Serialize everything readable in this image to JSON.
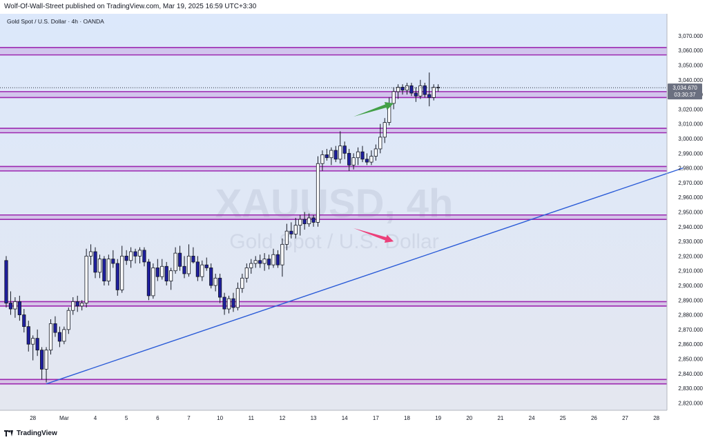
{
  "header": {
    "published": "Wolf-Of-Wall-Street published on TradingView.com, Mar 19, 2025 16:59 UTC+3:30"
  },
  "footer": {
    "brand": "TradingView"
  },
  "colors": {
    "bull": "#ffffff",
    "bear": "#1f1f9e",
    "band": "#9c27b0",
    "trend": "#2a5bd7",
    "bg_top": "#dce8fb",
    "bg_bottom": "#e4e7f0"
  },
  "chart_data": {
    "type": "candlestick",
    "title": "Gold Spot / U.S. Dollar · 4h · OANDA",
    "watermark": {
      "symbol": "XAUUSD, 4h",
      "name": "Gold Spot / U.S. Dollar"
    },
    "ylim": [
      2815,
      3085
    ],
    "y_ticks": [
      "3,070.000",
      "3,060.000",
      "3,050.000",
      "3,040.000",
      "3,030.000",
      "3,020.000",
      "3,010.000",
      "3,000.000",
      "2,990.000",
      "2,980.000",
      "2,970.000",
      "2,960.000",
      "2,950.000",
      "2,940.000",
      "2,930.000",
      "2,920.000",
      "2,910.000",
      "2,900.000",
      "2,890.000",
      "2,880.000",
      "2,870.000",
      "2,860.000",
      "2,850.000",
      "2,840.000",
      "2,830.000",
      "2,820.000"
    ],
    "x_labels": [
      {
        "i": 6,
        "label": "28"
      },
      {
        "i": 13,
        "label": "Mar"
      },
      {
        "i": 20,
        "label": "4"
      },
      {
        "i": 27,
        "label": "5"
      },
      {
        "i": 34,
        "label": "6"
      },
      {
        "i": 41,
        "label": "7"
      },
      {
        "i": 48,
        "label": "10"
      },
      {
        "i": 55,
        "label": "11"
      },
      {
        "i": 62,
        "label": "12"
      },
      {
        "i": 69,
        "label": "13"
      },
      {
        "i": 76,
        "label": "14"
      },
      {
        "i": 83,
        "label": "17"
      },
      {
        "i": 90,
        "label": "18"
      },
      {
        "i": 97,
        "label": "19"
      },
      {
        "i": 104,
        "label": "20"
      },
      {
        "i": 111,
        "label": "21"
      },
      {
        "i": 118,
        "label": "24"
      },
      {
        "i": 125,
        "label": "25"
      },
      {
        "i": 132,
        "label": "26"
      },
      {
        "i": 139,
        "label": "27"
      },
      {
        "i": 146,
        "label": "28"
      }
    ],
    "candles": [
      [
        2917,
        2920,
        2885,
        2888
      ],
      [
        2888,
        2896,
        2880,
        2884
      ],
      [
        2884,
        2892,
        2878,
        2889
      ],
      [
        2889,
        2893,
        2876,
        2880
      ],
      [
        2880,
        2884,
        2868,
        2872
      ],
      [
        2872,
        2876,
        2855,
        2860
      ],
      [
        2860,
        2866,
        2849,
        2864
      ],
      [
        2864,
        2870,
        2852,
        2856
      ],
      [
        2856,
        2858,
        2836,
        2843
      ],
      [
        2843,
        2858,
        2834,
        2856
      ],
      [
        2856,
        2877,
        2853,
        2874
      ],
      [
        2874,
        2879,
        2865,
        2868
      ],
      [
        2868,
        2872,
        2858,
        2862
      ],
      [
        2862,
        2872,
        2860,
        2870
      ],
      [
        2870,
        2885,
        2867,
        2883
      ],
      [
        2883,
        2892,
        2880,
        2889
      ],
      [
        2889,
        2893,
        2882,
        2886
      ],
      [
        2886,
        2890,
        2883,
        2888
      ],
      [
        2888,
        2925,
        2885,
        2920
      ],
      [
        2920,
        2928,
        2914,
        2923
      ],
      [
        2923,
        2926,
        2905,
        2909
      ],
      [
        2909,
        2921,
        2905,
        2918
      ],
      [
        2918,
        2920,
        2900,
        2903
      ],
      [
        2903,
        2921,
        2900,
        2918
      ],
      [
        2918,
        2924,
        2912,
        2915
      ],
      [
        2915,
        2918,
        2893,
        2897
      ],
      [
        2897,
        2927,
        2895,
        2920
      ],
      [
        2920,
        2924,
        2914,
        2917
      ],
      [
        2917,
        2926,
        2912,
        2923
      ],
      [
        2923,
        2925,
        2915,
        2920
      ],
      [
        2920,
        2926,
        2915,
        2924
      ],
      [
        2924,
        2926,
        2913,
        2916
      ],
      [
        2916,
        2918,
        2890,
        2893
      ],
      [
        2893,
        2915,
        2891,
        2912
      ],
      [
        2912,
        2918,
        2903,
        2906
      ],
      [
        2906,
        2918,
        2904,
        2913
      ],
      [
        2913,
        2916,
        2900,
        2903
      ],
      [
        2903,
        2912,
        2897,
        2910
      ],
      [
        2910,
        2926,
        2908,
        2922
      ],
      [
        2922,
        2927,
        2910,
        2913
      ],
      [
        2913,
        2920,
        2905,
        2908
      ],
      [
        2908,
        2928,
        2906,
        2920
      ],
      [
        2920,
        2926,
        2915,
        2916
      ],
      [
        2916,
        2920,
        2903,
        2906
      ],
      [
        2906,
        2917,
        2903,
        2914
      ],
      [
        2914,
        2919,
        2910,
        2912
      ],
      [
        2912,
        2915,
        2898,
        2900
      ],
      [
        2900,
        2908,
        2896,
        2905
      ],
      [
        2905,
        2908,
        2888,
        2892
      ],
      [
        2892,
        2895,
        2880,
        2884
      ],
      [
        2884,
        2893,
        2881,
        2891
      ],
      [
        2891,
        2895,
        2882,
        2885
      ],
      [
        2885,
        2902,
        2883,
        2898
      ],
      [
        2898,
        2908,
        2895,
        2905
      ],
      [
        2905,
        2915,
        2902,
        2912
      ],
      [
        2912,
        2918,
        2908,
        2915
      ],
      [
        2915,
        2920,
        2912,
        2917
      ],
      [
        2917,
        2921,
        2912,
        2915
      ],
      [
        2915,
        2922,
        2910,
        2918
      ],
      [
        2918,
        2921,
        2911,
        2914
      ],
      [
        2914,
        2925,
        2912,
        2921
      ],
      [
        2921,
        2924,
        2912,
        2914
      ],
      [
        2914,
        2932,
        2906,
        2928
      ],
      [
        2928,
        2942,
        2924,
        2937
      ],
      [
        2937,
        2943,
        2932,
        2935
      ],
      [
        2935,
        2946,
        2932,
        2941
      ],
      [
        2941,
        2948,
        2934,
        2945
      ],
      [
        2945,
        2950,
        2938,
        2942
      ],
      [
        2942,
        2949,
        2940,
        2946
      ],
      [
        2946,
        2948,
        2940,
        2943
      ],
      [
        2943,
        2988,
        2940,
        2983
      ],
      [
        2983,
        2992,
        2978,
        2989
      ],
      [
        2989,
        2993,
        2985,
        2987
      ],
      [
        2987,
        2994,
        2982,
        2992
      ],
      [
        2992,
        2995,
        2984,
        2986
      ],
      [
        2986,
        3005,
        2983,
        2995
      ],
      [
        2995,
        2998,
        2986,
        2990
      ],
      [
        2990,
        2993,
        2978,
        2982
      ],
      [
        2982,
        2990,
        2979,
        2987
      ],
      [
        2987,
        2994,
        2982,
        2991
      ],
      [
        2991,
        2995,
        2984,
        2986
      ],
      [
        2986,
        2990,
        2982,
        2984
      ],
      [
        2984,
        2992,
        2982,
        2988
      ],
      [
        2988,
        2996,
        2985,
        2993
      ],
      [
        2993,
        3010,
        2990,
        3001
      ],
      [
        3001,
        3014,
        2997,
        3011
      ],
      [
        3011,
        3028,
        3009,
        3024
      ],
      [
        3024,
        3035,
        3020,
        3032
      ],
      [
        3032,
        3037,
        3027,
        3035
      ],
      [
        3035,
        3037,
        3030,
        3033
      ],
      [
        3033,
        3038,
        3030,
        3036
      ],
      [
        3036,
        3038,
        3029,
        3031
      ],
      [
        3031,
        3035,
        3025,
        3029
      ],
      [
        3029,
        3040,
        3027,
        3036
      ],
      [
        3036,
        3038,
        3028,
        3030
      ],
      [
        3030,
        3045,
        3022,
        3028
      ],
      [
        3028,
        3037,
        3026,
        3035
      ],
      [
        3035,
        3037,
        3032,
        3035
      ]
    ],
    "current_price": "3,034.670",
    "countdown": "03:30:37",
    "current_value": 3034.67,
    "zones": [
      [
        3057,
        3062
      ],
      [
        3028,
        3032
      ],
      [
        3004,
        3007
      ],
      [
        2978,
        2981
      ],
      [
        2945,
        2948
      ],
      [
        2886,
        2889
      ],
      [
        2833,
        2836
      ]
    ],
    "trendline": {
      "from": {
        "i": 9,
        "v": 2833
      },
      "to": {
        "i": 152,
        "v": 2980
      }
    },
    "arrows": [
      {
        "color": "#43a047",
        "from": {
          "i": 78,
          "v": 3015
        },
        "to": {
          "i": 87,
          "v": 3024
        }
      },
      {
        "color": "#ec407a",
        "from": {
          "i": 78,
          "v": 2939
        },
        "to": {
          "i": 87,
          "v": 2930
        }
      }
    ]
  }
}
